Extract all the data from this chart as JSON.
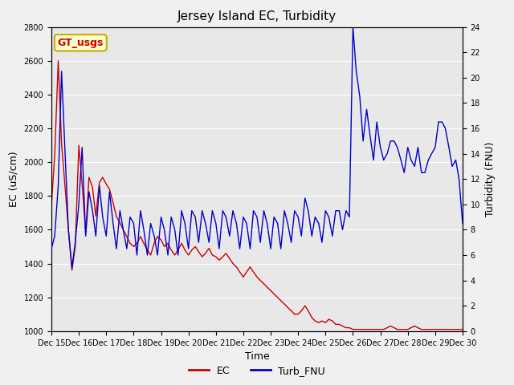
{
  "title": "Jersey Island EC, Turbidity",
  "xlabel": "Time",
  "ylabel_left": "EC (uS/cm)",
  "ylabel_right": "Turbidity (FNU)",
  "ylim_left": [
    1000,
    2800
  ],
  "ylim_right": [
    0,
    24
  ],
  "yticks_left": [
    1000,
    1200,
    1400,
    1600,
    1800,
    2000,
    2200,
    2400,
    2600,
    2800
  ],
  "yticks_right": [
    0,
    2,
    4,
    6,
    8,
    10,
    12,
    14,
    16,
    18,
    20,
    22,
    24
  ],
  "background_color": "#f0f0f0",
  "plot_bg_color": "#e8e8e8",
  "ec_color": "#cc0000",
  "turb_color": "#0000cc",
  "annotation_text": "GT_usgs",
  "annotation_color": "#cc0000",
  "annotation_bg": "#ffffcc",
  "annotation_border": "#ccaa00",
  "legend_labels": [
    "EC",
    "Turb_FNU"
  ],
  "xtick_labels": [
    "Dec 15",
    "Dec 16",
    "Dec 17",
    "Dec 18",
    "Dec 19",
    "Dec 20",
    "Dec 21",
    "Dec 22",
    "Dec 23",
    "Dec 24",
    "Dec 25",
    "Dec 26",
    "Dec 27",
    "Dec 28",
    "Dec 29",
    "Dec 30"
  ],
  "ec_x": [
    0.0,
    0.12,
    0.25,
    0.37,
    0.5,
    0.62,
    0.75,
    0.87,
    1.0,
    1.12,
    1.25,
    1.37,
    1.5,
    1.62,
    1.75,
    1.87,
    2.0,
    2.12,
    2.25,
    2.37,
    2.5,
    2.62,
    2.75,
    2.87,
    3.0,
    3.12,
    3.25,
    3.37,
    3.5,
    3.62,
    3.75,
    3.87,
    4.0,
    4.12,
    4.25,
    4.37,
    4.5,
    4.62,
    4.75,
    4.87,
    5.0,
    5.12,
    5.25,
    5.37,
    5.5,
    5.62,
    5.75,
    5.87,
    6.0,
    6.12,
    6.25,
    6.37,
    6.5,
    6.62,
    6.75,
    6.87,
    7.0,
    7.12,
    7.25,
    7.37,
    7.5,
    7.62,
    7.75,
    7.87,
    8.0,
    8.12,
    8.25,
    8.37,
    8.5,
    8.62,
    8.75,
    8.87,
    9.0,
    9.12,
    9.25,
    9.37,
    9.5,
    9.62,
    9.75,
    9.87,
    10.0,
    10.12,
    10.25,
    10.37,
    10.5,
    10.62,
    10.75,
    10.87,
    11.0,
    11.12,
    11.25,
    11.37,
    11.5,
    11.62,
    11.75,
    11.87,
    12.0,
    12.12,
    12.25,
    12.37,
    12.5,
    12.62,
    12.75,
    12.87,
    13.0,
    13.12,
    13.25,
    13.37,
    13.5,
    13.62,
    13.75,
    13.87,
    14.0,
    14.12,
    14.25,
    14.37,
    14.5,
    14.62,
    14.75,
    14.87,
    15.0
  ],
  "ec_y": [
    1740,
    2040,
    2600,
    2110,
    1850,
    1600,
    1360,
    1500,
    2100,
    1870,
    1580,
    1910,
    1850,
    1680,
    1880,
    1910,
    1870,
    1840,
    1760,
    1680,
    1640,
    1600,
    1560,
    1520,
    1500,
    1520,
    1560,
    1520,
    1480,
    1450,
    1520,
    1560,
    1540,
    1500,
    1520,
    1480,
    1450,
    1480,
    1520,
    1480,
    1450,
    1480,
    1500,
    1470,
    1440,
    1460,
    1490,
    1450,
    1440,
    1420,
    1440,
    1460,
    1430,
    1400,
    1380,
    1350,
    1320,
    1350,
    1380,
    1350,
    1320,
    1300,
    1280,
    1260,
    1240,
    1220,
    1200,
    1180,
    1160,
    1140,
    1120,
    1100,
    1100,
    1120,
    1150,
    1120,
    1080,
    1060,
    1050,
    1060,
    1050,
    1070,
    1060,
    1040,
    1040,
    1030,
    1020,
    1020,
    1010,
    1010,
    1010,
    1010,
    1010,
    1010,
    1010,
    1010,
    1010,
    1010,
    1020,
    1030,
    1020,
    1010,
    1010,
    1010,
    1010,
    1020,
    1030,
    1020,
    1010,
    1010,
    1010,
    1010,
    1010,
    1010,
    1010,
    1010,
    1010,
    1010,
    1010,
    1010,
    1010
  ],
  "turb_x": [
    0.0,
    0.12,
    0.25,
    0.37,
    0.5,
    0.62,
    0.75,
    0.87,
    1.0,
    1.12,
    1.25,
    1.37,
    1.5,
    1.62,
    1.75,
    1.87,
    2.0,
    2.12,
    2.25,
    2.37,
    2.5,
    2.62,
    2.75,
    2.87,
    3.0,
    3.12,
    3.25,
    3.37,
    3.5,
    3.62,
    3.75,
    3.87,
    4.0,
    4.12,
    4.25,
    4.37,
    4.5,
    4.62,
    4.75,
    4.87,
    5.0,
    5.12,
    5.25,
    5.37,
    5.5,
    5.62,
    5.75,
    5.87,
    6.0,
    6.12,
    6.25,
    6.37,
    6.5,
    6.62,
    6.75,
    6.87,
    7.0,
    7.12,
    7.25,
    7.37,
    7.5,
    7.62,
    7.75,
    7.87,
    8.0,
    8.12,
    8.25,
    8.37,
    8.5,
    8.62,
    8.75,
    8.87,
    9.0,
    9.12,
    9.25,
    9.37,
    9.5,
    9.62,
    9.75,
    9.87,
    10.0,
    10.12,
    10.25,
    10.37,
    10.5,
    10.62,
    10.75,
    10.87,
    11.0,
    11.12,
    11.25,
    11.37,
    11.5,
    11.62,
    11.75,
    11.87,
    12.0,
    12.12,
    12.25,
    12.37,
    12.5,
    12.62,
    12.75,
    12.87,
    13.0,
    13.12,
    13.25,
    13.37,
    13.5,
    13.62,
    13.75,
    13.87,
    14.0,
    14.12,
    14.25,
    14.37,
    14.5,
    14.62,
    14.75,
    14.87,
    15.0
  ],
  "turb_y": [
    6.5,
    7.5,
    11.5,
    20.5,
    14.0,
    8.0,
    5.0,
    7.0,
    10.0,
    14.5,
    7.5,
    11.0,
    9.5,
    7.5,
    11.5,
    9.0,
    7.5,
    11.0,
    8.5,
    6.5,
    9.5,
    8.0,
    6.5,
    9.0,
    8.5,
    6.0,
    9.5,
    8.0,
    6.0,
    8.5,
    7.5,
    6.0,
    9.0,
    8.0,
    6.0,
    9.0,
    8.0,
    6.0,
    9.5,
    8.5,
    6.5,
    9.5,
    9.0,
    7.0,
    9.5,
    8.5,
    7.0,
    9.5,
    8.5,
    6.5,
    9.5,
    9.0,
    7.5,
    9.5,
    8.5,
    6.5,
    9.0,
    8.5,
    6.5,
    9.5,
    9.0,
    7.0,
    9.5,
    8.5,
    6.5,
    9.0,
    8.5,
    6.5,
    9.5,
    8.5,
    7.0,
    9.5,
    9.0,
    7.5,
    10.5,
    9.5,
    7.5,
    9.0,
    8.5,
    7.0,
    9.5,
    9.0,
    7.5,
    9.5,
    9.5,
    8.0,
    9.5,
    9.0,
    24.0,
    20.5,
    18.5,
    15.0,
    17.5,
    15.5,
    13.5,
    16.5,
    14.5,
    13.5,
    14.0,
    15.0,
    15.0,
    14.5,
    13.5,
    12.5,
    14.5,
    13.5,
    13.0,
    14.5,
    12.5,
    12.5,
    13.5,
    14.0,
    14.5,
    16.5,
    16.5,
    16.0,
    14.5,
    13.0,
    13.5,
    12.0,
    8.5
  ]
}
